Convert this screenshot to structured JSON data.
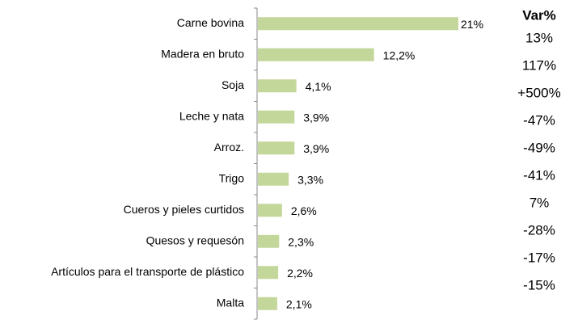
{
  "chart_data": {
    "type": "bar",
    "orientation": "horizontal",
    "categories": [
      "Carne bovina",
      "Madera en bruto",
      "Soja",
      "Leche y nata",
      "Arroz.",
      "Trigo",
      "Cueros y pieles curtidos",
      "Quesos y requesón",
      "Artículos para el transporte de plástico",
      "Malta"
    ],
    "values": [
      21,
      12.2,
      4.1,
      3.9,
      3.9,
      3.3,
      2.6,
      2.3,
      2.2,
      2.1
    ],
    "value_labels": [
      "21%",
      "12,2%",
      "4,1%",
      "3,9%",
      "3,9%",
      "3,3%",
      "2,6%",
      "2,3%",
      "2,2%",
      "2,1%"
    ],
    "color": "#c4d79b",
    "var_header": "Var%",
    "var_values": [
      "13%",
      "117%",
      "+500%",
      "-47%",
      "-49%",
      "-41%",
      "7%",
      "-28%",
      "-17%",
      "-15%"
    ]
  }
}
